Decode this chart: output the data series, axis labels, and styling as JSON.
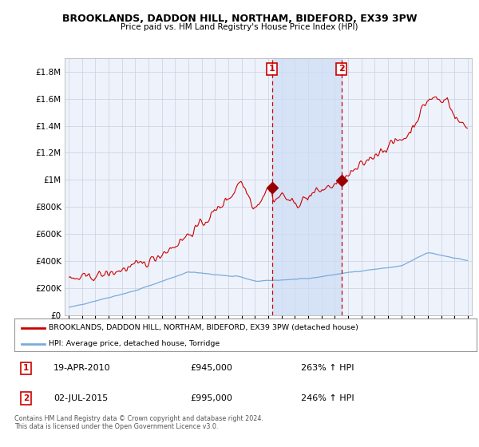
{
  "title": "BROOKLANDS, DADDON HILL, NORTHAM, BIDEFORD, EX39 3PW",
  "subtitle": "Price paid vs. HM Land Registry's House Price Index (HPI)",
  "legend_line1": "BROOKLANDS, DADDON HILL, NORTHAM, BIDEFORD, EX39 3PW (detached house)",
  "legend_line2": "HPI: Average price, detached house, Torridge",
  "sale1_date": "19-APR-2010",
  "sale1_price": "£945,000",
  "sale1_hpi": "263% ↑ HPI",
  "sale1_year": 2010.29,
  "sale1_value": 945000,
  "sale2_date": "02-JUL-2015",
  "sale2_price": "£995,000",
  "sale2_hpi": "246% ↑ HPI",
  "sale2_year": 2015.5,
  "sale2_value": 995000,
  "ytick_values": [
    0,
    200000,
    400000,
    600000,
    800000,
    1000000,
    1200000,
    1400000,
    1600000,
    1800000
  ],
  "ylim": [
    0,
    1900000
  ],
  "xlim_start": 1994.7,
  "xlim_end": 2025.3,
  "background_color": "#ffffff",
  "plot_bg_color": "#eef2fb",
  "grid_color": "#c8cfe0",
  "red_line_color": "#cc0000",
  "blue_line_color": "#7aabda",
  "vline_color": "#cc0000",
  "marker_color": "#990000",
  "shade_color": "#ccddf5",
  "footnote": "Contains HM Land Registry data © Crown copyright and database right 2024.\nThis data is licensed under the Open Government Licence v3.0."
}
